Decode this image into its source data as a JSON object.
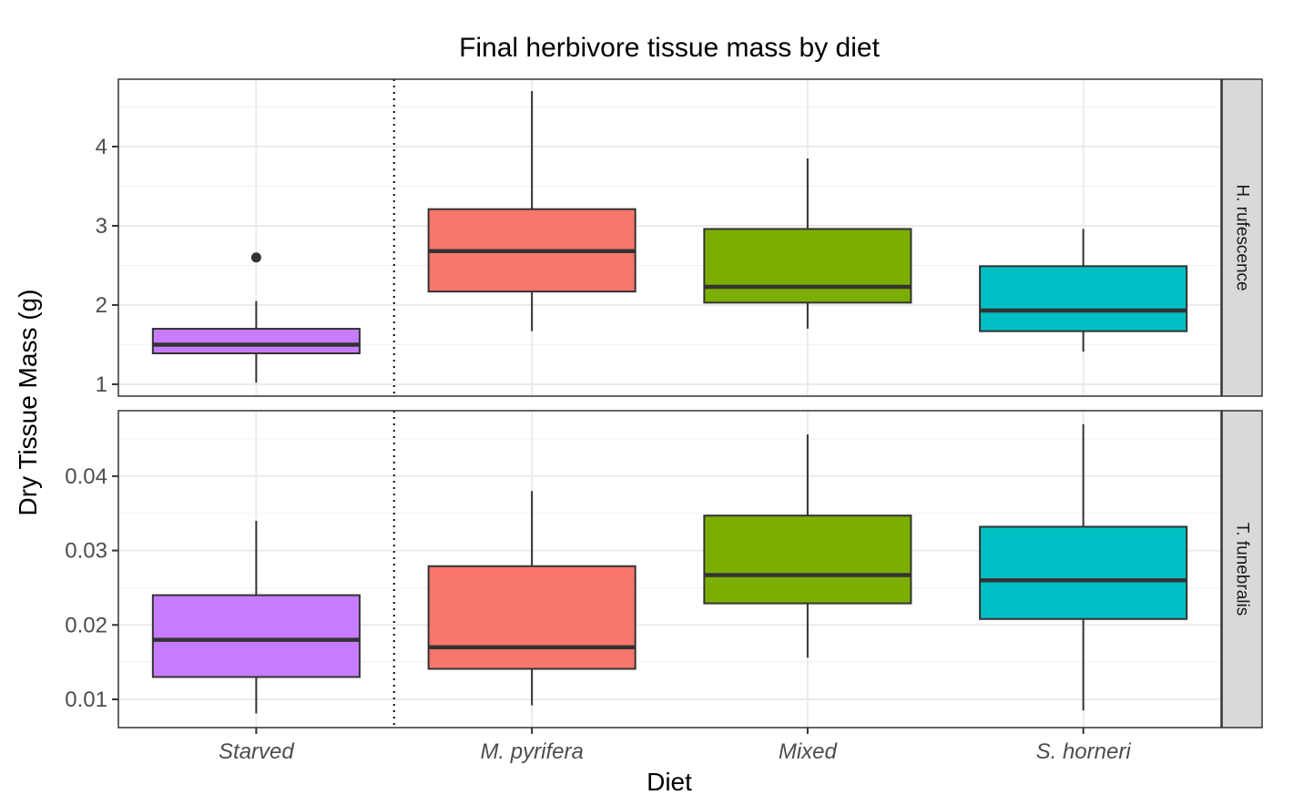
{
  "chart_data": {
    "type": "box",
    "title": "Final herbivore tissue mass by diet",
    "xlabel": "Diet",
    "ylabel": "Dry Tissue Mass (g)",
    "categories": [
      "Starved",
      "M. pyrifera",
      "Mixed",
      "S. horneri"
    ],
    "colors": {
      "Starved": "#C77CFF",
      "M. pyrifera": "#F8766D",
      "Mixed": "#7CAE00",
      "S. horneri": "#00BFC4"
    },
    "vertical_reference_line": {
      "style": "dotted",
      "between": [
        "Starved",
        "M. pyrifera"
      ]
    },
    "facets": [
      {
        "label": "H. rufescence",
        "ylim": [
          0.85,
          4.85
        ],
        "yticks": [
          1,
          2,
          3,
          4
        ],
        "ytick_labels": [
          "1",
          "2",
          "3",
          "4"
        ],
        "boxes": [
          {
            "category": "Starved",
            "min": 1.02,
            "q1": 1.39,
            "median": 1.5,
            "q3": 1.7,
            "max": 2.05,
            "outliers": [
              2.6
            ]
          },
          {
            "category": "M. pyrifera",
            "min": 1.67,
            "q1": 2.17,
            "median": 2.68,
            "q3": 3.21,
            "max": 4.7,
            "outliers": []
          },
          {
            "category": "Mixed",
            "min": 1.7,
            "q1": 2.03,
            "median": 2.23,
            "q3": 2.96,
            "max": 3.85,
            "outliers": []
          },
          {
            "category": "S. horneri",
            "min": 1.41,
            "q1": 1.67,
            "median": 1.93,
            "q3": 2.49,
            "max": 2.96,
            "outliers": []
          }
        ]
      },
      {
        "label": "T. funebralis",
        "ylim": [
          0.0062,
          0.0488
        ],
        "yticks": [
          0.01,
          0.02,
          0.03,
          0.04
        ],
        "ytick_labels": [
          "0.01",
          "0.02",
          "0.03",
          "0.04"
        ],
        "boxes": [
          {
            "category": "Starved",
            "min": 0.0081,
            "q1": 0.013,
            "median": 0.018,
            "q3": 0.024,
            "max": 0.034,
            "outliers": []
          },
          {
            "category": "M. pyrifera",
            "min": 0.0092,
            "q1": 0.0141,
            "median": 0.017,
            "q3": 0.0279,
            "max": 0.038,
            "outliers": []
          },
          {
            "category": "Mixed",
            "min": 0.0156,
            "q1": 0.0229,
            "median": 0.0267,
            "q3": 0.0347,
            "max": 0.0456,
            "outliers": []
          },
          {
            "category": "S. horneri",
            "min": 0.0085,
            "q1": 0.0208,
            "median": 0.026,
            "q3": 0.0332,
            "max": 0.047,
            "outliers": []
          }
        ]
      }
    ]
  }
}
